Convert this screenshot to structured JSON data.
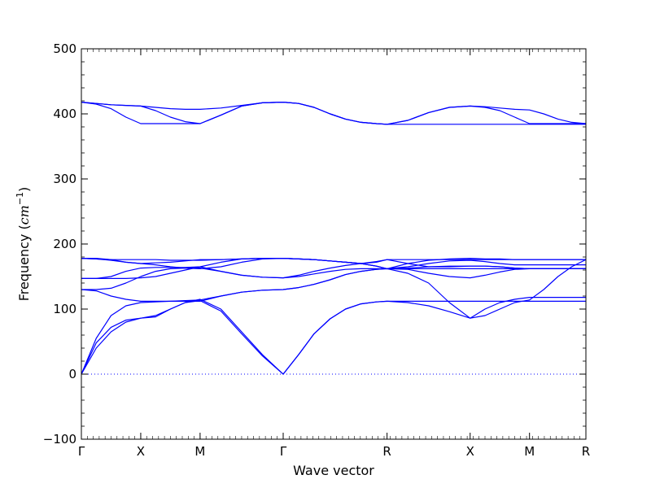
{
  "chart_data": {
    "type": "line",
    "title": "",
    "xlabel": "Wave vector",
    "ylabel_prefix": "Frequency (",
    "ylabel_unit_base": "cm",
    "ylabel_unit_exp": "−1",
    "ylabel_suffix": ")",
    "ylim": [
      -100,
      500
    ],
    "yticks": [
      -100,
      0,
      100,
      200,
      300,
      400,
      500
    ],
    "ytick_labels": [
      "−100",
      "0",
      "100",
      "200",
      "300",
      "400",
      "500"
    ],
    "xlim": [
      0,
      8.5
    ],
    "xticks": [
      0,
      1,
      2,
      3.4,
      5.15,
      6.55,
      7.55,
      8.5
    ],
    "xtick_labels": [
      "Γ",
      "X",
      "M",
      "Γ",
      "R",
      "X",
      "M",
      "R"
    ],
    "line_color": "#0000ff",
    "zero_line": {
      "y": 0,
      "style": "dotted",
      "color": "#0000ff"
    },
    "series": [
      {
        "x": [
          0,
          0.25,
          0.5,
          0.75,
          1,
          1.25,
          1.5,
          1.75,
          2,
          2.35,
          2.7,
          3.05,
          3.4,
          3.66,
          3.92,
          4.19,
          4.45,
          4.71,
          4.97,
          5.15,
          5.5,
          5.85,
          6.2,
          6.55,
          6.8,
          7.05,
          7.3,
          7.55,
          7.79,
          8.03,
          8.26,
          8.5
        ],
        "y": [
          0,
          40,
          65,
          80,
          86,
          88,
          100,
          110,
          115,
          100,
          65,
          30,
          0,
          30,
          62,
          85,
          100,
          108,
          111,
          112,
          112,
          112,
          112,
          112,
          112,
          112,
          112,
          112,
          112,
          112,
          112,
          112
        ]
      },
      {
        "x": [
          0,
          0.25,
          0.5,
          0.75,
          1,
          1.25,
          1.5,
          1.75,
          2,
          2.35,
          2.7,
          3.05,
          3.4,
          3.66,
          3.92,
          4.19,
          4.45,
          4.71,
          4.97,
          5.15,
          5.5,
          5.85,
          6.2,
          6.55,
          6.8,
          7.05,
          7.3,
          7.55,
          7.79,
          8.03,
          8.26,
          8.5
        ],
        "y": [
          0,
          48,
          72,
          83,
          86,
          90,
          100,
          110,
          113,
          97,
          62,
          28,
          0,
          30,
          62,
          85,
          100,
          108,
          111,
          112,
          110,
          105,
          96,
          86,
          90,
          100,
          110,
          114,
          130,
          150,
          165,
          176
        ]
      },
      {
        "x": [
          0,
          0.25,
          0.5,
          0.75,
          1,
          1.25,
          1.5,
          1.75,
          2,
          2.35,
          2.7,
          3.05,
          3.4,
          3.66,
          3.92,
          4.19,
          4.45,
          4.71,
          4.97,
          5.15,
          5.5,
          5.85,
          6.2,
          6.55,
          6.8,
          7.05,
          7.3,
          7.55,
          7.79,
          8.03,
          8.26,
          8.5
        ],
        "y": [
          0,
          55,
          90,
          105,
          110,
          111,
          112,
          113,
          114,
          120,
          126,
          129,
          130,
          133,
          138,
          145,
          153,
          158,
          161,
          162,
          161,
          155,
          150,
          148,
          152,
          157,
          161,
          162,
          162,
          162,
          162,
          162
        ]
      },
      {
        "x": [
          0,
          0.25,
          0.5,
          0.75,
          1,
          1.25,
          1.5,
          1.75,
          2,
          2.35,
          2.7,
          3.05,
          3.4,
          3.66,
          3.92,
          4.19,
          4.45,
          4.71,
          4.97,
          5.15,
          5.5,
          5.85,
          6.2,
          6.55,
          6.8,
          7.05,
          7.3,
          7.55,
          7.79,
          8.03,
          8.26,
          8.5
        ],
        "y": [
          130,
          128,
          120,
          115,
          112,
          112,
          112,
          112,
          112,
          120,
          126,
          129,
          130,
          133,
          138,
          145,
          153,
          158,
          161,
          162,
          155,
          140,
          110,
          86,
          100,
          110,
          115,
          118,
          118,
          118,
          118,
          118
        ]
      },
      {
        "x": [
          0,
          0.25,
          0.5,
          0.75,
          1,
          1.25,
          1.5,
          1.75,
          2,
          2.35,
          2.7,
          3.05,
          3.4,
          3.66,
          3.92,
          4.19,
          4.45,
          4.71,
          4.97,
          5.15,
          5.5,
          5.85,
          6.2,
          6.55,
          6.8,
          7.05,
          7.3,
          7.55,
          7.79,
          8.03,
          8.26,
          8.5
        ],
        "y": [
          130,
          130,
          132,
          140,
          150,
          158,
          162,
          163,
          163,
          158,
          152,
          149,
          148,
          152,
          158,
          163,
          167,
          170,
          173,
          176,
          170,
          165,
          165,
          166,
          166,
          165,
          163,
          162,
          162,
          162,
          162,
          162
        ]
      },
      {
        "x": [
          0,
          0.25,
          0.5,
          0.75,
          1,
          1.25,
          1.5,
          1.75,
          2,
          2.35,
          2.7,
          3.05,
          3.4,
          3.66,
          3.92,
          4.19,
          4.45,
          4.71,
          4.97,
          5.15,
          5.5,
          5.85,
          6.2,
          6.55,
          6.8,
          7.05,
          7.3,
          7.55,
          7.79,
          8.03,
          8.26,
          8.5
        ],
        "y": [
          147,
          147,
          147,
          147,
          148,
          150,
          155,
          160,
          165,
          158,
          152,
          149,
          148,
          150,
          154,
          158,
          161,
          162,
          162,
          162,
          163,
          165,
          166,
          166,
          166,
          165,
          163,
          162,
          162,
          162,
          162,
          162
        ]
      },
      {
        "x": [
          0,
          0.25,
          0.5,
          0.75,
          1,
          1.25,
          1.5,
          1.75,
          2,
          2.35,
          2.7,
          3.05,
          3.4,
          3.66,
          3.92,
          4.19,
          4.45,
          4.71,
          4.97,
          5.15,
          5.5,
          5.85,
          6.2,
          6.55,
          6.8,
          7.05,
          7.3,
          7.55,
          7.79,
          8.03,
          8.26,
          8.5
        ],
        "y": [
          147,
          147,
          150,
          158,
          163,
          164,
          164,
          164,
          165,
          172,
          177,
          178,
          178,
          177,
          176,
          174,
          172,
          170,
          166,
          162,
          162,
          162,
          162,
          162,
          162,
          162,
          162,
          162,
          162,
          162,
          162,
          162
        ]
      },
      {
        "x": [
          0,
          0.25,
          0.5,
          0.75,
          1,
          1.25,
          1.5,
          1.75,
          2,
          2.35,
          2.7,
          3.05,
          3.4,
          3.66,
          3.92,
          4.19,
          4.45,
          4.71,
          4.97,
          5.15,
          5.5,
          5.85,
          6.2,
          6.55,
          6.8,
          7.05,
          7.3,
          7.55,
          7.79,
          8.03,
          8.26,
          8.5
        ],
        "y": [
          178,
          178,
          176,
          172,
          170,
          168,
          165,
          163,
          162,
          165,
          172,
          177,
          178,
          177,
          176,
          174,
          172,
          170,
          166,
          162,
          165,
          170,
          174,
          175,
          173,
          170,
          168,
          168,
          168,
          168,
          168,
          168
        ]
      },
      {
        "x": [
          0,
          0.25,
          0.5,
          0.75,
          1,
          1.25,
          1.5,
          1.75,
          2,
          2.35,
          2.7,
          3.05,
          3.4,
          3.66,
          3.92,
          4.19,
          4.45,
          4.71,
          4.97,
          5.15,
          5.5,
          5.85,
          6.2,
          6.55,
          6.8,
          7.05,
          7.3,
          7.55,
          7.79,
          8.03,
          8.26,
          8.5
        ],
        "y": [
          178,
          177,
          176,
          176,
          176,
          176,
          175,
          175,
          175,
          176,
          177,
          178,
          178,
          177,
          176,
          174,
          172,
          170,
          166,
          162,
          170,
          175,
          177,
          178,
          177,
          177,
          176,
          176,
          176,
          176,
          176,
          176
        ]
      },
      {
        "x": [
          0,
          0.25,
          0.5,
          0.75,
          1,
          1.25,
          1.5,
          1.75,
          2,
          2.35,
          2.7,
          3.05,
          3.4,
          3.66,
          3.92,
          4.19,
          4.45,
          4.71,
          4.97,
          5.15,
          5.5,
          5.85,
          6.2,
          6.55,
          6.8,
          7.05,
          7.3,
          7.55,
          7.79,
          8.03,
          8.26,
          8.5
        ],
        "y": [
          178,
          177,
          175,
          172,
          170,
          171,
          172,
          174,
          176,
          176,
          177,
          178,
          178,
          177,
          176,
          174,
          172,
          170,
          172,
          176,
          176,
          176,
          176,
          176,
          176,
          176,
          176,
          176,
          176,
          176,
          176,
          176
        ]
      },
      {
        "x": [
          0,
          0.25,
          0.5,
          0.75,
          1,
          1.25,
          1.5,
          1.75,
          2,
          2.35,
          2.7,
          3.05,
          3.4,
          3.66,
          3.92,
          4.19,
          4.45,
          4.71,
          4.97,
          5.15,
          5.5,
          5.85,
          6.2,
          6.55,
          6.8,
          7.05,
          7.3,
          7.55,
          7.79,
          8.03,
          8.26,
          8.5
        ],
        "y": [
          418,
          415,
          408,
          395,
          385,
          385,
          385,
          385,
          385,
          398,
          412,
          417,
          418,
          416,
          410,
          400,
          392,
          387,
          385,
          384,
          390,
          402,
          410,
          412,
          410,
          405,
          395,
          385,
          385,
          385,
          385,
          385
        ]
      },
      {
        "x": [
          0,
          0.25,
          0.5,
          0.75,
          1,
          1.25,
          1.5,
          1.75,
          2,
          2.35,
          2.7,
          3.05,
          3.4,
          3.66,
          3.92,
          4.19,
          4.45,
          4.71,
          4.97,
          5.15,
          5.5,
          5.85,
          6.2,
          6.55,
          6.8,
          7.05,
          7.3,
          7.55,
          7.79,
          8.03,
          8.26,
          8.5
        ],
        "y": [
          418,
          416,
          414,
          413,
          412,
          405,
          395,
          388,
          385,
          398,
          412,
          417,
          418,
          416,
          410,
          400,
          392,
          387,
          385,
          384,
          384,
          384,
          384,
          384,
          384,
          384,
          384,
          384,
          384,
          384,
          384,
          384
        ]
      },
      {
        "x": [
          0,
          0.25,
          0.5,
          0.75,
          1,
          1.25,
          1.5,
          1.75,
          2,
          2.35,
          2.7,
          3.05,
          3.4,
          3.66,
          3.92,
          4.19,
          4.45,
          4.71,
          4.97,
          5.15,
          5.5,
          5.85,
          6.2,
          6.55,
          6.8,
          7.05,
          7.3,
          7.55,
          7.79,
          8.03,
          8.26,
          8.5
        ],
        "y": [
          418,
          416,
          414,
          413,
          412,
          410,
          408,
          407,
          407,
          409,
          413,
          417,
          418,
          416,
          410,
          400,
          392,
          387,
          385,
          384,
          390,
          402,
          410,
          412,
          411,
          409,
          407,
          406,
          400,
          392,
          387,
          385
        ]
      }
    ]
  }
}
